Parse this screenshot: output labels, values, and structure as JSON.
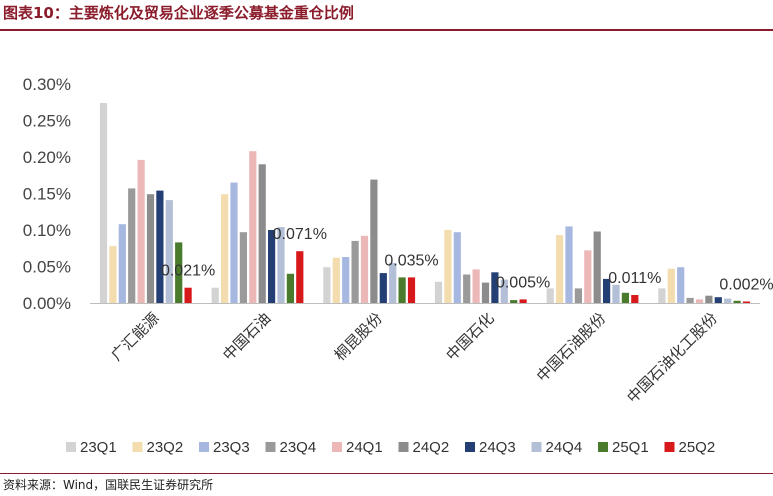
{
  "header": {
    "title": "图表10：主要炼化及贸易企业逐季公募基金重仓比例"
  },
  "footer": {
    "source": "资料来源：Wind，国联民生证券研究所"
  },
  "chart_data": {
    "type": "bar",
    "title": "",
    "xlabel": "",
    "ylabel": "",
    "ylim": [
      0,
      0.3
    ],
    "yticks": [
      "0.00%",
      "0.05%",
      "0.10%",
      "0.15%",
      "0.20%",
      "0.25%",
      "0.30%"
    ],
    "grid": false,
    "legend_position": "bottom",
    "categories": [
      "广汇能源",
      "中国石油",
      "桐昆股份",
      "中国石化",
      "中国石油股份",
      "中国石油化工股份"
    ],
    "series": [
      {
        "name": "23Q1",
        "color": "#d3d3d3",
        "values": [
          0.274,
          0.021,
          0.049,
          0.029,
          0.02,
          0.02
        ]
      },
      {
        "name": "23Q2",
        "color": "#f3dcae",
        "values": [
          0.078,
          0.149,
          0.062,
          0.1,
          0.093,
          0.047
        ]
      },
      {
        "name": "23Q3",
        "color": "#a7b8e0",
        "values": [
          0.108,
          0.165,
          0.063,
          0.097,
          0.105,
          0.049
        ]
      },
      {
        "name": "23Q4",
        "color": "#9a9a9a",
        "values": [
          0.157,
          0.097,
          0.085,
          0.039,
          0.02,
          0.007
        ]
      },
      {
        "name": "24Q1",
        "color": "#ebb7b7",
        "values": [
          0.196,
          0.208,
          0.092,
          0.046,
          0.072,
          0.005
        ]
      },
      {
        "name": "24Q2",
        "color": "#8c8c8c",
        "values": [
          0.149,
          0.19,
          0.169,
          0.028,
          0.098,
          0.01
        ]
      },
      {
        "name": "24Q3",
        "color": "#243f73",
        "values": [
          0.154,
          0.1,
          0.041,
          0.042,
          0.033,
          0.008
        ]
      },
      {
        "name": "24Q4",
        "color": "#b2bfd6",
        "values": [
          0.141,
          0.104,
          0.055,
          0.032,
          0.025,
          0.006
        ]
      },
      {
        "name": "25Q1",
        "color": "#4a7a2c",
        "values": [
          0.083,
          0.04,
          0.035,
          0.004,
          0.014,
          0.003
        ]
      },
      {
        "name": "25Q2",
        "color": "#d7191c",
        "values": [
          0.021,
          0.071,
          0.035,
          0.005,
          0.011,
          0.002
        ]
      }
    ],
    "data_labels": [
      "0.021%",
      "0.071%",
      "0.035%",
      "0.005%",
      "0.011%",
      "0.002%"
    ]
  }
}
